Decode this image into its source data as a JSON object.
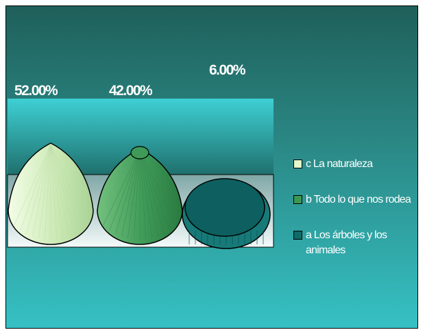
{
  "chart_data": {
    "type": "bar",
    "shape": "cone",
    "categories": [
      "c La naturaleza",
      "b Todo lo que nos rodea",
      "a Los árboles y los animales"
    ],
    "values": [
      52.0,
      42.0,
      6.0
    ],
    "value_labels": [
      "52.00%",
      "42.00%",
      "6.00%"
    ],
    "unit": "%",
    "legend": {
      "placement": "right",
      "entries": [
        {
          "label": "c La naturaleza",
          "color": "#e4f8c8"
        },
        {
          "label": "b Todo lo que nos rodea",
          "color": "#3c9850"
        },
        {
          "label": "a Los árboles y los animales",
          "color": "#0f6b68"
        }
      ]
    },
    "series_colors": [
      "#d0edbc",
      "#3f9a58",
      "#0d605f"
    ],
    "grid": false
  }
}
